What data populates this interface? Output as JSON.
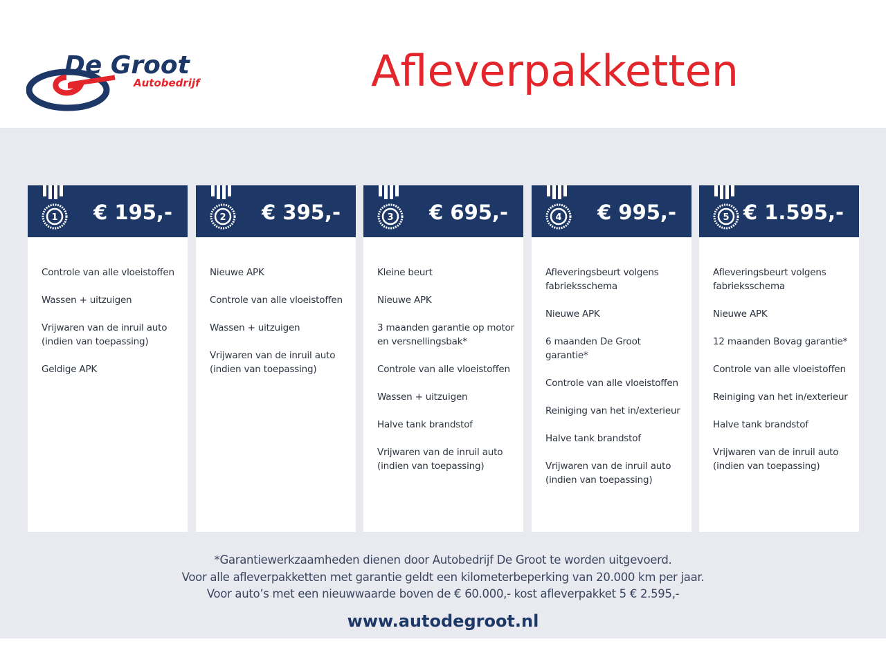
{
  "brand": {
    "name": "De Groot",
    "sub": "Autobedrijf",
    "colors": {
      "navy": "#1d3867",
      "red": "#e3262b"
    }
  },
  "title": "Afleverpakketten",
  "packages": [
    {
      "number": "1",
      "price": "€ 195,-",
      "items": [
        "Controle van alle vloeistoffen",
        "Wassen + uitzuigen",
        "Vrijwaren van de inruil auto\n(indien van toepassing)",
        "Geldige APK"
      ]
    },
    {
      "number": "2",
      "price": "€ 395,-",
      "items": [
        "Nieuwe APK",
        "Controle van alle vloeistoffen",
        "Wassen + uitzuigen",
        "Vrijwaren van de inruil auto\n(indien van toepassing)"
      ]
    },
    {
      "number": "3",
      "price": "€ 695,-",
      "items": [
        "Kleine beurt",
        "Nieuwe APK",
        "3 maanden garantie op motor\nen versnellingsbak*",
        "Controle van alle vloeistoffen",
        "Wassen + uitzuigen",
        "Halve tank brandstof",
        "Vrijwaren van de inruil auto\n(indien van toepassing)"
      ]
    },
    {
      "number": "4",
      "price": "€ 995,-",
      "items": [
        "Afleveringsbeurt volgens\nfabrieksschema",
        "Nieuwe APK",
        "6 maanden De Groot garantie*",
        "Controle van alle vloeistoffen",
        "Reiniging van het in/exterieur",
        "Halve tank brandstof",
        "Vrijwaren van de inruil auto\n(indien van toepassing)"
      ]
    },
    {
      "number": "5",
      "price": "€ 1.595,-",
      "items": [
        "Afleveringsbeurt volgens\nfabrieksschema",
        "Nieuwe APK",
        "12 maanden Bovag garantie*",
        "Controle van alle vloeistoffen",
        "Reiniging van het in/exterieur",
        "Halve tank brandstof",
        "Vrijwaren van de inruil auto\n(indien van toepassing)"
      ]
    }
  ],
  "notes": [
    "*Garantiewerkzaamheden dienen door Autobedrijf De Groot te worden uitgevoerd.",
    "Voor alle afleverpakketten met garantie geldt een kilometerbeperking van 20.000 km per jaar.",
    "Voor auto’s met een nieuwwaarde boven de € 60.000,- kost afleverpakket 5 € 2.595,-"
  ],
  "url": "www.autodegroot.nl"
}
